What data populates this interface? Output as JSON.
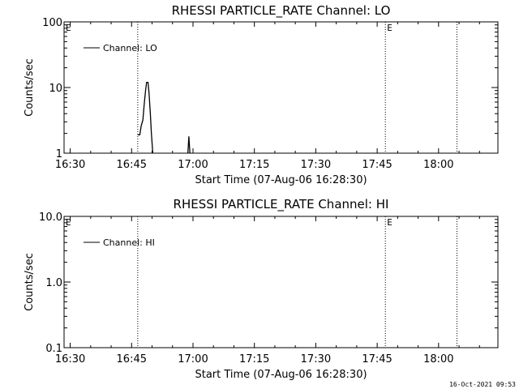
{
  "chart_data": [
    {
      "type": "line",
      "title": "RHESSI PARTICLE_RATE Channel: LO",
      "xlabel": "Start Time (07-Aug-06 16:28:30)",
      "ylabel": "Counts/sec",
      "yscale": "log",
      "ylim": [
        1,
        100
      ],
      "xlim": [
        "16:28:30",
        "18:14:30"
      ],
      "xticks": [
        "16:30",
        "16:45",
        "17:00",
        "17:15",
        "17:30",
        "17:45",
        "18:00"
      ],
      "yticks": [
        "1",
        "10",
        "100"
      ],
      "legend": {
        "label": "Channel: LO",
        "placement": "top-left"
      },
      "series": [
        {
          "name": "Channel: LO",
          "points": [
            [
              "16:46:30",
              1.9
            ],
            [
              "16:47:00",
              1.9
            ],
            [
              "16:47:20",
              2.6
            ],
            [
              "16:47:45",
              3.2
            ],
            [
              "16:48:05",
              5.5
            ],
            [
              "16:48:25",
              9.0
            ],
            [
              "16:48:40",
              12
            ],
            [
              "16:49:00",
              12
            ],
            [
              "16:49:15",
              8.5
            ],
            [
              "16:49:35",
              4.0
            ],
            [
              "16:49:50",
              2.0
            ],
            [
              "16:50:10",
              0.8
            ]
          ],
          "blip": [
            [
              "16:58:45",
              0.8
            ],
            [
              "16:59:00",
              1.8
            ],
            [
              "16:59:15",
              0.8
            ]
          ]
        }
      ],
      "event_lines": [
        "16:46:30",
        "17:47:00",
        "18:04:30"
      ],
      "flags": [
        {
          "text": "E",
          "at": "16:28:30"
        },
        {
          "text": "E",
          "at": "17:47:00"
        }
      ]
    },
    {
      "type": "line",
      "title": "RHESSI PARTICLE_RATE Channel: HI",
      "xlabel": "Start Time (07-Aug-06 16:28:30)",
      "ylabel": "Counts/sec",
      "yscale": "log",
      "ylim": [
        0.1,
        10
      ],
      "xlim": [
        "16:28:30",
        "18:14:30"
      ],
      "xticks": [
        "16:30",
        "16:45",
        "17:00",
        "17:15",
        "17:30",
        "17:45",
        "18:00"
      ],
      "yticks": [
        "0.1",
        "1.0",
        "10.0"
      ],
      "legend": {
        "label": "Channel: HI",
        "placement": "top-left"
      },
      "series": [
        {
          "name": "Channel: HI",
          "points": [],
          "blip": []
        }
      ],
      "event_lines": [
        "16:46:30",
        "17:47:00",
        "18:04:30"
      ],
      "flags": [
        {
          "text": "E",
          "at": "16:28:30"
        },
        {
          "text": "E",
          "at": "17:47:00"
        }
      ]
    }
  ],
  "footer": {
    "timestamp": "16-Oct-2021 09:53"
  }
}
